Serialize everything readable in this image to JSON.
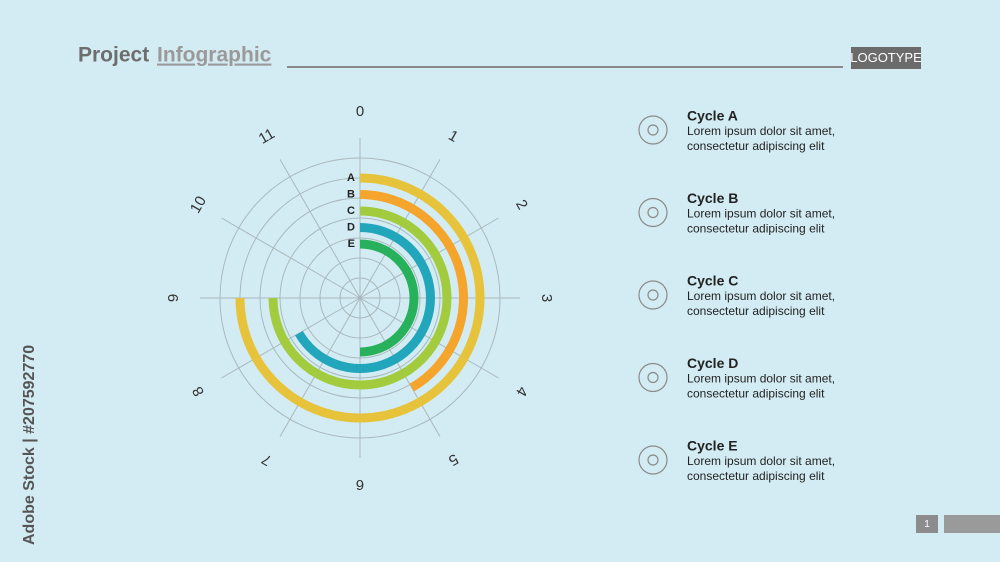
{
  "header": {
    "title_main": "Project",
    "title_accent": "Infographic",
    "logo": "LOGOTYPE"
  },
  "chart_data": {
    "type": "radial_bar",
    "categories": [
      "A",
      "B",
      "C",
      "D",
      "E"
    ],
    "values": [
      9,
      5,
      9,
      8,
      6
    ],
    "colors": [
      "#e6c33a",
      "#f5a52c",
      "#a2cc3e",
      "#22a6bb",
      "#27b15c"
    ],
    "lim": [
      0,
      12
    ],
    "ticks": [
      0,
      1,
      2,
      3,
      4,
      5,
      6,
      7,
      8,
      9,
      10,
      11
    ],
    "grid": true
  },
  "legend": [
    {
      "title": "Cycle A",
      "line1": "Lorem ipsum dolor sit amet,",
      "line2": "consectetur adipiscing elit"
    },
    {
      "title": "Cycle B",
      "line1": "Lorem ipsum dolor sit amet,",
      "line2": "consectetur adipiscing elit"
    },
    {
      "title": "Cycle C",
      "line1": "Lorem ipsum dolor sit amet,",
      "line2": "consectetur adipiscing elit"
    },
    {
      "title": "Cycle D",
      "line1": "Lorem ipsum dolor sit amet,",
      "line2": "consectetur adipiscing elit"
    },
    {
      "title": "Cycle E",
      "line1": "Lorem ipsum dolor sit amet,",
      "line2": "consectetur adipiscing elit"
    }
  ],
  "page_number": "1",
  "watermark": "Adobe Stock | #207592770"
}
